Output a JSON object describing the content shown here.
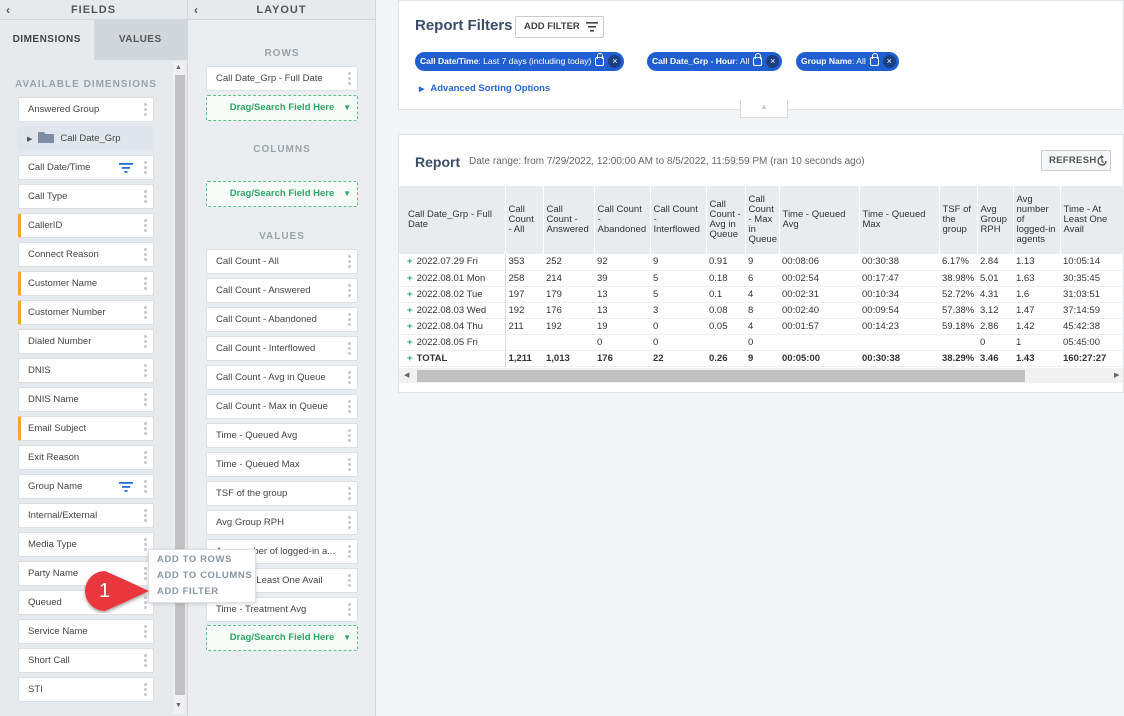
{
  "fields_panel": {
    "title": "FIELDS",
    "tabs": [
      "DIMENSIONS",
      "VALUES"
    ],
    "section_title": "AVAILABLE DIMENSIONS",
    "items": [
      {
        "label": "Answered Group",
        "accent": false,
        "filter": false
      },
      {
        "label": "Call Date_Grp",
        "accent": false,
        "filter": false,
        "folder": true
      },
      {
        "label": "Call Date/Time",
        "accent": false,
        "filter": true
      },
      {
        "label": "Call Type",
        "accent": false,
        "filter": false
      },
      {
        "label": "CallerID",
        "accent": true,
        "filter": false
      },
      {
        "label": "Connect Reason",
        "accent": false,
        "filter": false
      },
      {
        "label": "Customer Name",
        "accent": true,
        "filter": false
      },
      {
        "label": "Customer Number",
        "accent": true,
        "filter": false
      },
      {
        "label": "Dialed Number",
        "accent": false,
        "filter": false
      },
      {
        "label": "DNIS",
        "accent": false,
        "filter": false
      },
      {
        "label": "DNIS Name",
        "accent": false,
        "filter": false
      },
      {
        "label": "Email Subject",
        "accent": true,
        "filter": false
      },
      {
        "label": "Exit Reason",
        "accent": false,
        "filter": false
      },
      {
        "label": "Group Name",
        "accent": false,
        "filter": true
      },
      {
        "label": "Internal/External",
        "accent": false,
        "filter": false
      },
      {
        "label": "Media Type",
        "accent": false,
        "filter": false
      },
      {
        "label": "Party Name",
        "accent": false,
        "filter": false
      },
      {
        "label": "Queued",
        "accent": false,
        "filter": false
      },
      {
        "label": "Service Name",
        "accent": false,
        "filter": false
      },
      {
        "label": "Short Call",
        "accent": false,
        "filter": false
      },
      {
        "label": "STI",
        "accent": false,
        "filter": false
      }
    ]
  },
  "layout_panel": {
    "title": "LAYOUT",
    "rows_title": "ROWS",
    "columns_title": "COLUMNS",
    "values_title": "VALUES",
    "rows": [
      "Call Date_Grp - Full Date"
    ],
    "dropzone_label": "Drag/Search Field Here",
    "values": [
      "Call Count - All",
      "Call Count - Answered",
      "Call Count - Abandoned",
      "Call Count - Interflowed",
      "Call Count - Avg in Queue",
      "Call Count - Max in Queue",
      "Time - Queued Avg",
      "Time - Queued Max",
      "TSF of the group",
      "Avg Group RPH",
      "Avg number of logged-in a...",
      "Time - At Least One Avail",
      "Time - Treatment Avg"
    ]
  },
  "context_menu": {
    "items": [
      "ADD TO ROWS",
      "ADD TO COLUMNS",
      "ADD FILTER"
    ]
  },
  "callout": {
    "number": "1",
    "color": "#e8373d"
  },
  "report_filters": {
    "title": "Report Filters",
    "add_filter_label": "ADD FILTER",
    "chips": [
      {
        "name": "Call Date/Time",
        "value": ": Last 7 days (including today)"
      },
      {
        "name": "Call Date_Grp - Hour",
        "value": ": All"
      },
      {
        "name": "Group Name",
        "value": ": All"
      }
    ],
    "advanced_sorting": "Advanced Sorting Options"
  },
  "report": {
    "title": "Report",
    "date_range": "Date range: from 7/29/2022, 12:00:00 AM to 8/5/2022, 11:59:59 PM (ran 10 seconds ago)",
    "refresh_label": "REFRESH",
    "columns": [
      "Call Date_Grp - Full Date",
      "Call Count - All",
      "Call Count - Answered",
      "Call Count - Abandoned",
      "Call Count - Interflowed",
      "Call Count - Avg in Queue",
      "Call Count - Max in Queue",
      "Time - Queued Avg",
      "Time - Queued Max",
      "TSF of the group",
      "Avg Group RPH",
      "Avg number of logged-in agents",
      "Time - At Least One Avail"
    ],
    "rows": [
      [
        "2022.07.29 Fri",
        "353",
        "252",
        "92",
        "9",
        "0.91",
        "9",
        "00:08:06",
        "00:30:38",
        "6.17%",
        "2.84",
        "1.13",
        "10:05:14"
      ],
      [
        "2022.08.01 Mon",
        "258",
        "214",
        "39",
        "5",
        "0.18",
        "6",
        "00:02:54",
        "00:17:47",
        "38.98%",
        "5.01",
        "1.63",
        "30:35:45"
      ],
      [
        "2022.08.02 Tue",
        "197",
        "179",
        "13",
        "5",
        "0.1",
        "4",
        "00:02:31",
        "00:10:34",
        "52.72%",
        "4.31",
        "1.6",
        "31:03:51"
      ],
      [
        "2022.08.03 Wed",
        "192",
        "176",
        "13",
        "3",
        "0.08",
        "8",
        "00:02:40",
        "00:09:54",
        "57.38%",
        "3.12",
        "1.47",
        "37:14:59"
      ],
      [
        "2022.08.04 Thu",
        "211",
        "192",
        "19",
        "0",
        "0.05",
        "4",
        "00:01:57",
        "00:14:23",
        "59.18%",
        "2.86",
        "1.42",
        "45:42:38"
      ],
      [
        "2022.08.05 Fri",
        "",
        "",
        "0",
        "0",
        "",
        "0",
        "",
        "",
        "",
        "0",
        "1",
        "05:45:00"
      ]
    ],
    "total": [
      "TOTAL",
      "1,211",
      "1,013",
      "176",
      "22",
      "0.26",
      "9",
      "00:05:00",
      "00:30:38",
      "38.29%",
      "3.46",
      "1.43",
      "160:27:27"
    ]
  }
}
